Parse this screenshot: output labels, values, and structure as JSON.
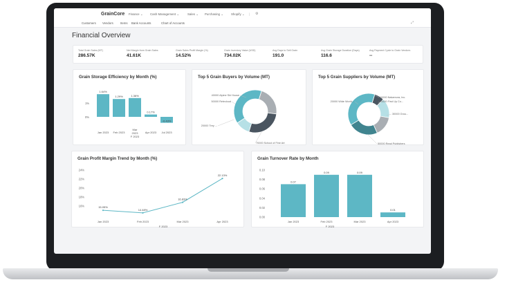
{
  "topbar": {
    "brand": "GrainCore",
    "menus": [
      "Finance",
      "Cash Management",
      "Sales",
      "Purchasing",
      "Shopify"
    ],
    "submenu": [
      "Customers",
      "Vendors",
      "Items",
      "Bank Accounts",
      "Chart of Accounts"
    ]
  },
  "page": {
    "title": "Financial Overview"
  },
  "kpis": [
    {
      "label": "Total Grain Sales (MT)",
      "value": "286.57K"
    },
    {
      "label": "Net Margin from Grain Sales",
      "value": "41.61K"
    },
    {
      "label": "Grain Sales Profit Margin (%)",
      "value": "14.52%"
    },
    {
      "label": "Grain Inventory Value (USD)",
      "value": "734.02K"
    },
    {
      "label": "Avg Days to Sell Grain",
      "value": "191.0"
    },
    {
      "label": "Avg Grain Storage Duration (Days)",
      "value": "116.6"
    },
    {
      "label": "Avg Payment Cycle to Grain Vendors",
      "value": "--"
    }
  ],
  "chart_data": [
    {
      "type": "bar",
      "title": "Grain Storage Efficiency by Month (%)",
      "categories": [
        "Jan 2023",
        "Feb 2023",
        "Mar 2023",
        "Apr 2023",
        "Jul 2023"
      ],
      "values": [
        1.64,
        1.29,
        1.36,
        0.17,
        -0.43
      ],
      "data_labels": [
        "1.64%",
        "1.29%",
        "1.36%",
        "0.17%",
        "-0.43%"
      ],
      "y_ticks": [
        "1%",
        "0%"
      ],
      "x_sublabel": "F 2023",
      "ylim": [
        -0.6,
        1.8
      ]
    },
    {
      "type": "pie",
      "title": "Top 5 Grain Buyers by Volume (MT)",
      "labels": [
        "40000 Alpine Ski House",
        "50000 Relecloud",
        "20000 Trey ...",
        "70000 School of Fine Art"
      ],
      "values": [
        40000,
        50000,
        20000,
        70000
      ],
      "colors": [
        "#a9aeb3",
        "#4a5560",
        "#b6e0e6",
        "#5db7c5"
      ]
    },
    {
      "type": "pie",
      "title": "Top 5 Grain Suppliers by Volume (MT)",
      "labels": [
        "10000 Nakamura, Inc.",
        "20000 Wide World...",
        "20000 First Up Co...",
        "30000 Grou...",
        "50000 Read Publishers"
      ],
      "values": [
        10000,
        20000,
        20000,
        30000,
        50000
      ],
      "colors": [
        "#4a5560",
        "#b6e0e6",
        "#a9aeb3",
        "#40848f",
        "#5db7c5"
      ]
    },
    {
      "type": "line",
      "title": "Grain Profit Margin Trend by Month (%)",
      "categories": [
        "Jan 2023",
        "Feb 2023",
        "Mar 2023",
        "Apr 2023"
      ],
      "values": [
        15.05,
        14.48,
        16.83,
        22.13
      ],
      "data_labels": [
        "15.05%",
        "14.48%",
        "16.83%",
        "22.13%"
      ],
      "y_ticks": [
        "24%",
        "22%",
        "20%",
        "18%",
        "16%"
      ],
      "x_sublabel": "F 2023",
      "ylim": [
        14,
        24
      ]
    },
    {
      "type": "bar",
      "title": "Grain Turnover Rate by Month",
      "categories": [
        "Jan 2023",
        "Feb 2023",
        "Mar 2023",
        "Apr 2023"
      ],
      "values": [
        0.07,
        0.09,
        0.09,
        0.01
      ],
      "data_labels": [
        "0.07",
        "0.09",
        "0.09",
        "0.01"
      ],
      "y_ticks": [
        "0.10",
        "0.08",
        "0.06",
        "0.04",
        "0.02",
        "0.00"
      ],
      "x_sublabel": "F 2023",
      "ylim": [
        0,
        0.1
      ]
    }
  ]
}
